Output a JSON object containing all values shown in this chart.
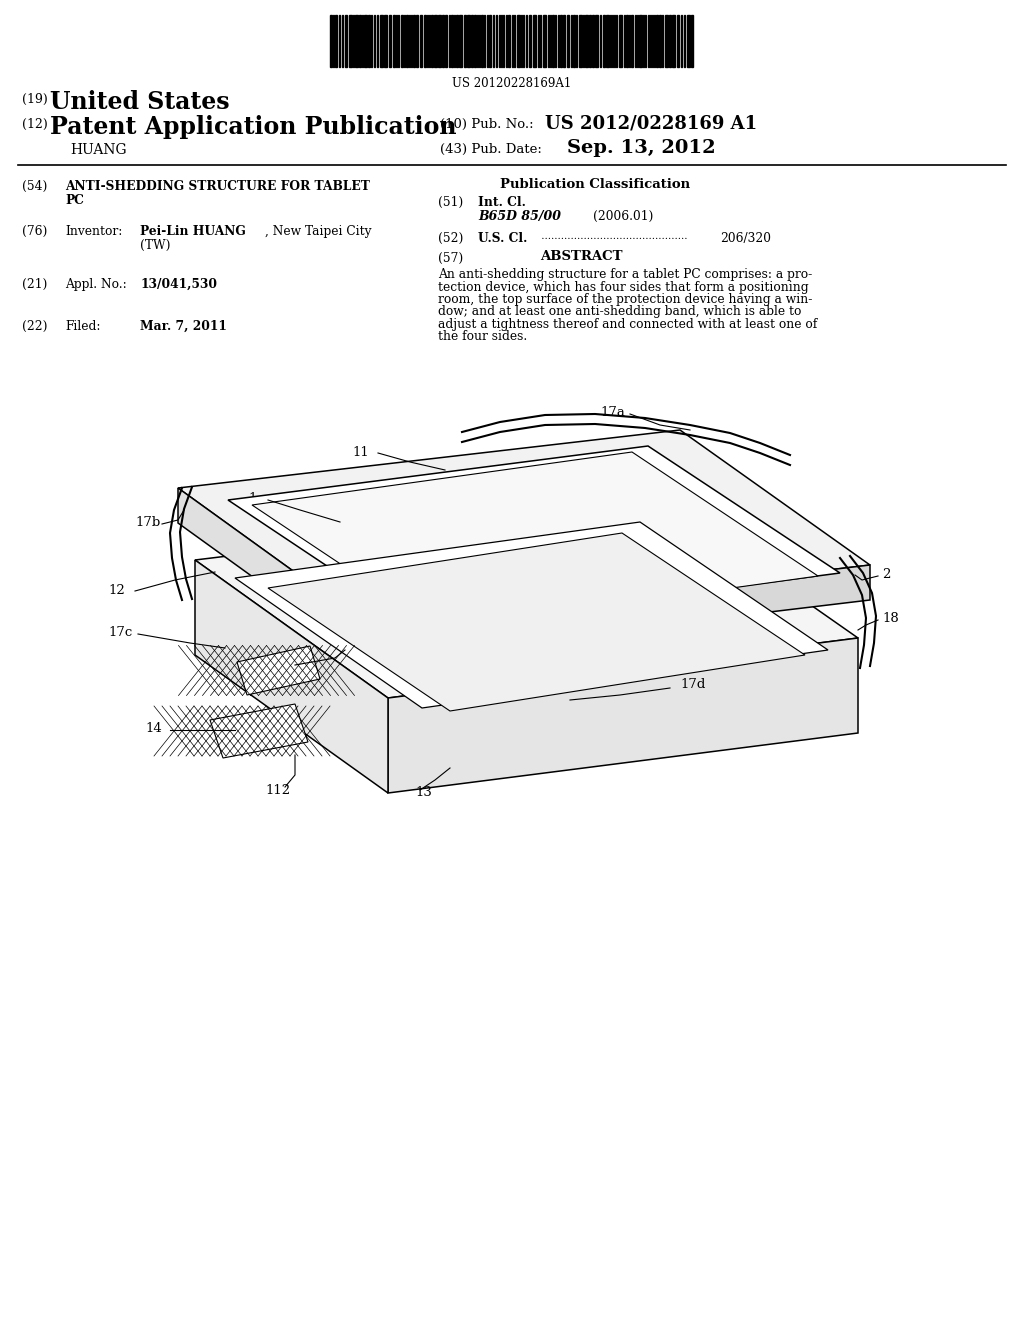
{
  "bg_color": "#ffffff",
  "barcode_text": "US 20120228169A1",
  "pub_no": "US 2012/0228169 A1",
  "pub_date": "Sep. 13, 2012",
  "abstract": "An anti-shedding structure for a tablet PC comprises: a pro-\ntection device, which has four sides that form a positioning\nroom, the top surface of the protection device having a win-\ndow; and at least one anti-shedding band, which is able to\nadjust a tightness thereof and connected with at least one of\nthe four sides."
}
